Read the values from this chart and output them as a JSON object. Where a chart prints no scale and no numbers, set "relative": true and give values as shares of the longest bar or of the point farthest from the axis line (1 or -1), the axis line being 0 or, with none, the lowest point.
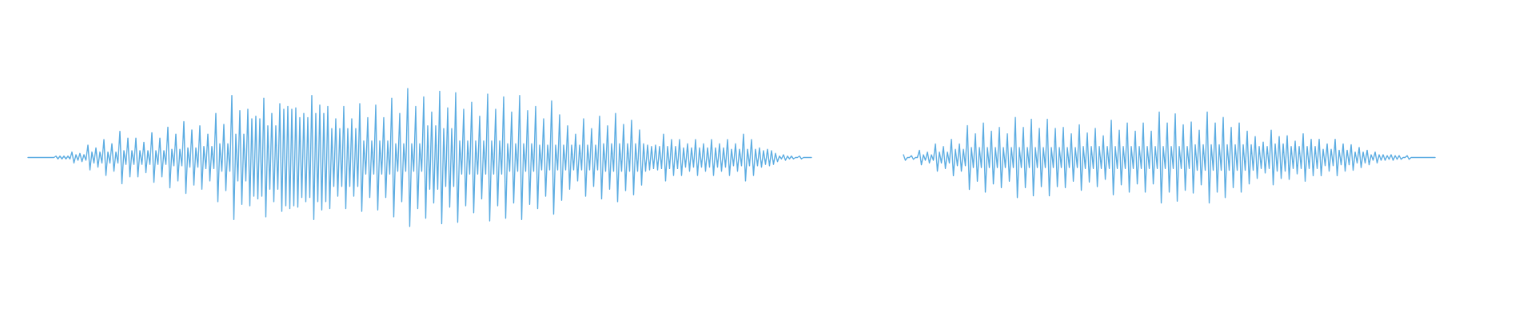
{
  "chart_data": [
    {
      "type": "line",
      "relative": true,
      "color": "#5dade2",
      "categories": [
        null,
        null,
        null,
        null,
        null,
        null,
        null,
        null,
        null,
        null,
        null,
        null,
        null,
        null,
        null,
        null,
        null,
        null,
        null,
        null,
        null,
        null,
        null,
        null,
        null,
        null,
        null,
        null,
        null,
        null,
        null,
        null,
        null,
        null,
        null,
        null,
        null,
        null,
        null,
        null,
        null,
        null,
        null,
        null,
        null,
        null,
        null,
        null,
        null,
        null,
        null,
        null,
        null,
        null,
        null,
        null,
        null,
        null,
        null,
        null,
        null,
        null,
        null,
        null,
        null,
        null,
        null,
        null,
        null,
        null,
        null,
        null,
        null,
        null,
        null,
        null,
        null,
        null,
        null,
        null,
        null,
        null,
        null,
        null,
        null,
        null,
        null,
        null,
        null,
        null,
        null,
        null,
        null,
        null,
        null,
        null,
        null,
        null,
        null,
        null,
        null,
        null,
        null,
        null,
        null,
        null,
        null,
        null,
        null,
        null,
        null,
        null,
        null,
        null,
        null,
        null,
        null,
        null,
        null,
        null,
        null,
        null,
        null,
        null,
        null,
        null,
        null,
        null,
        null,
        null,
        null,
        null,
        null,
        null,
        null,
        null,
        null,
        null,
        null,
        null,
        null,
        null,
        null,
        null,
        null,
        null,
        null,
        null,
        null,
        null,
        null,
        null,
        null,
        null,
        null,
        null,
        null,
        null,
        null,
        null,
        null,
        null,
        null,
        null,
        null,
        null,
        null,
        null,
        null,
        null,
        null,
        null,
        null,
        null,
        null,
        null,
        null,
        null,
        null,
        null,
        null,
        null,
        null,
        null,
        null,
        null,
        null,
        null,
        null,
        null,
        null,
        null,
        null,
        null,
        null,
        null,
        null,
        null,
        null,
        null,
        null,
        null,
        null,
        null,
        null,
        null,
        null,
        null,
        null,
        null,
        null,
        null,
        null,
        null,
        null,
        null,
        null,
        null,
        null,
        null,
        null,
        null,
        null,
        null,
        null,
        null,
        null,
        null,
        null,
        null,
        null,
        null,
        null,
        null,
        null,
        null,
        null,
        null,
        null,
        null,
        null,
        null,
        null,
        null,
        null,
        null,
        null,
        null,
        null,
        null,
        null,
        null,
        null,
        null,
        null,
        null,
        null,
        null,
        null,
        null,
        null,
        null,
        null,
        null,
        null,
        null,
        null,
        null,
        null,
        null,
        null,
        null,
        null,
        null,
        null,
        null,
        null,
        null,
        null,
        null,
        null,
        null,
        null,
        null,
        null,
        null,
        null,
        null,
        null,
        null,
        null,
        null,
        null,
        null,
        null,
        null,
        null,
        null,
        null,
        null,
        null,
        null,
        null,
        null,
        null,
        null,
        null,
        null,
        null,
        null,
        null,
        null,
        null,
        null,
        null,
        null,
        null,
        null,
        null,
        null,
        null,
        null,
        null,
        null,
        null,
        null,
        null,
        null,
        null,
        null,
        null,
        null,
        null,
        null,
        null,
        null,
        null,
        null,
        null,
        null,
        null,
        null,
        null,
        null,
        null,
        null,
        null,
        null,
        null,
        null,
        null,
        null,
        null,
        null,
        null,
        null,
        null,
        null,
        null,
        null,
        null,
        null,
        null,
        null,
        null,
        null,
        null,
        null,
        null,
        null,
        null,
        null,
        null,
        null,
        null,
        null,
        null,
        null,
        null,
        null,
        null,
        null,
        null,
        null,
        null,
        null,
        null,
        null,
        null,
        null,
        null,
        null,
        null
      ],
      "values": [
        0.5,
        0.5,
        0.5,
        0.5,
        0.5,
        0.5,
        0.5,
        0.5,
        0.5,
        0.5,
        0.5,
        0.5,
        0.5,
        0.5,
        0.51,
        0.49,
        0.51,
        0.49,
        0.51,
        0.49,
        0.51,
        0.49,
        0.54,
        0.46,
        0.52,
        0.48,
        0.53,
        0.47,
        0.52,
        0.48,
        0.59,
        0.41,
        0.54,
        0.46,
        0.57,
        0.43,
        0.54,
        0.46,
        0.63,
        0.37,
        0.54,
        0.46,
        0.6,
        0.4,
        0.54,
        0.46,
        0.69,
        0.31,
        0.55,
        0.45,
        0.64,
        0.36,
        0.55,
        0.45,
        0.64,
        0.36,
        0.55,
        0.45,
        0.61,
        0.39,
        0.55,
        0.45,
        0.68,
        0.32,
        0.55,
        0.45,
        0.64,
        0.36,
        0.55,
        0.45,
        0.72,
        0.28,
        0.56,
        0.44,
        0.67,
        0.33,
        0.56,
        0.44,
        0.76,
        0.24,
        0.57,
        0.43,
        0.7,
        0.3,
        0.57,
        0.43,
        0.73,
        0.27,
        0.58,
        0.42,
        0.67,
        0.33,
        0.58,
        0.42,
        0.82,
        0.18,
        0.6,
        0.4,
        0.74,
        0.26,
        0.6,
        0.4,
        0.95,
        0.05,
        0.67,
        0.33,
        0.84,
        0.16,
        0.67,
        0.33,
        0.85,
        0.15,
        0.78,
        0.22,
        0.8,
        0.2,
        0.78,
        0.22,
        0.93,
        0.07,
        0.73,
        0.27,
        0.82,
        0.18,
        0.73,
        0.27,
        0.89,
        0.11,
        0.85,
        0.15,
        0.87,
        0.13,
        0.85,
        0.15,
        0.86,
        0.14,
        0.79,
        0.21,
        0.82,
        0.18,
        0.79,
        0.21,
        0.95,
        0.05,
        0.82,
        0.18,
        0.88,
        0.12,
        0.82,
        0.18,
        0.87,
        0.13,
        0.71,
        0.29,
        0.78,
        0.22,
        0.71,
        0.29,
        0.87,
        0.13,
        0.71,
        0.29,
        0.78,
        0.22,
        0.71,
        0.29,
        0.89,
        0.11,
        0.62,
        0.38,
        0.79,
        0.21,
        0.62,
        0.38,
        0.88,
        0.12,
        0.62,
        0.38,
        0.79,
        0.21,
        0.62,
        0.38,
        0.93,
        0.07,
        0.6,
        0.4,
        0.82,
        0.18,
        0.6,
        0.4,
        1,
        0,
        0.6,
        0.4,
        0.87,
        0.13,
        0.6,
        0.4,
        0.94,
        0.06,
        0.73,
        0.27,
        0.83,
        0.17,
        0.73,
        0.27,
        0.98,
        0.02,
        0.71,
        0.29,
        0.86,
        0.14,
        0.71,
        0.29,
        0.97,
        0.03,
        0.62,
        0.38,
        0.85,
        0.15,
        0.62,
        0.38,
        0.9,
        0.1,
        0.62,
        0.38,
        0.8,
        0.2,
        0.62,
        0.38,
        0.96,
        0.04,
        0.62,
        0.38,
        0.85,
        0.15,
        0.62,
        0.38,
        0.94,
        0.06,
        0.6,
        0.4,
        0.83,
        0.17,
        0.6,
        0.4,
        0.95,
        0.05,
        0.6,
        0.4,
        0.84,
        0.16,
        0.6,
        0.4,
        0.87,
        0.13,
        0.59,
        0.41,
        0.78,
        0.22,
        0.59,
        0.41,
        0.91,
        0.09,
        0.59,
        0.41,
        0.81,
        0.19,
        0.59,
        0.41,
        0.73,
        0.27,
        0.59,
        0.41,
        0.67,
        0.33,
        0.59,
        0.41,
        0.78,
        0.22,
        0.59,
        0.41,
        0.71,
        0.29,
        0.59,
        0.41,
        0.8,
        0.2,
        0.6,
        0.4,
        0.73,
        0.27,
        0.6,
        0.4,
        0.82,
        0.18,
        0.6,
        0.4,
        0.74,
        0.26,
        0.6,
        0.4,
        0.77,
        0.23,
        0.6,
        0.4,
        0.7,
        0.3,
        0.6,
        0.4,
        0.59,
        0.41,
        0.58,
        0.42,
        0.59,
        0.41,
        0.58,
        0.42,
        0.67,
        0.33,
        0.58,
        0.42,
        0.63,
        0.37,
        0.58,
        0.42,
        0.63,
        0.37,
        0.57,
        0.43,
        0.6,
        0.4,
        0.57,
        0.43,
        0.63,
        0.37,
        0.57,
        0.43,
        0.6,
        0.4,
        0.57,
        0.43,
        0.63,
        0.37,
        0.57,
        0.43,
        0.6,
        0.4,
        0.57,
        0.43,
        0.63,
        0.37,
        0.56,
        0.44,
        0.6,
        0.4,
        0.56,
        0.44,
        0.67,
        0.33,
        0.56,
        0.44,
        0.63,
        0.37,
        0.56,
        0.44,
        0.57,
        0.43,
        0.55,
        0.45,
        0.56,
        0.44,
        0.55,
        0.45,
        0.53,
        0.47,
        0.51,
        0.49,
        0.52,
        0.48,
        0.51,
        0.49,
        0.51,
        0.49,
        0.5,
        0.5,
        0.51,
        0.49,
        0.5,
        0.5,
        0.5,
        0.5,
        0.5
      ]
    },
    {
      "type": "line",
      "relative": true,
      "color": "#5dade2",
      "categories": [
        null,
        null,
        null,
        null,
        null,
        null,
        null,
        null,
        null,
        null,
        null,
        null,
        null,
        null,
        null,
        null,
        null,
        null,
        null,
        null,
        null,
        null,
        null,
        null,
        null,
        null,
        null,
        null,
        null,
        null,
        null,
        null,
        null,
        null,
        null,
        null,
        null,
        null,
        null,
        null,
        null,
        null,
        null,
        null,
        null,
        null,
        null,
        null,
        null,
        null,
        null,
        null,
        null,
        null,
        null,
        null,
        null,
        null,
        null,
        null,
        null,
        null,
        null,
        null,
        null,
        null,
        null,
        null,
        null,
        null,
        null,
        null,
        null,
        null,
        null,
        null,
        null,
        null,
        null,
        null,
        null,
        null,
        null,
        null,
        null,
        null,
        null,
        null,
        null,
        null,
        null,
        null,
        null,
        null,
        null,
        null,
        null,
        null,
        null,
        null,
        null,
        null,
        null,
        null,
        null,
        null,
        null,
        null,
        null,
        null,
        null,
        null,
        null,
        null,
        null,
        null,
        null,
        null,
        null,
        null,
        null,
        null,
        null,
        null,
        null,
        null,
        null,
        null,
        null,
        null,
        null,
        null,
        null,
        null,
        null,
        null,
        null,
        null,
        null,
        null,
        null,
        null,
        null,
        null,
        null,
        null,
        null,
        null,
        null,
        null,
        null,
        null,
        null,
        null,
        null,
        null,
        null,
        null,
        null,
        null,
        null,
        null,
        null,
        null,
        null,
        null,
        null,
        null,
        null,
        null,
        null,
        null,
        null,
        null,
        null,
        null,
        null,
        null,
        null,
        null,
        null,
        null,
        null,
        null,
        null,
        null,
        null,
        null,
        null,
        null,
        null,
        null,
        null,
        null,
        null,
        null,
        null,
        null,
        null,
        null,
        null,
        null,
        null,
        null,
        null,
        null,
        null,
        null,
        null,
        null,
        null,
        null,
        null,
        null,
        null,
        null,
        null,
        null,
        null,
        null,
        null,
        null,
        null,
        null,
        null,
        null,
        null,
        null,
        null,
        null,
        null,
        null,
        null,
        null,
        null,
        null,
        null,
        null,
        null,
        null,
        null,
        null,
        null,
        null,
        null,
        null,
        null,
        null,
        null,
        null,
        null,
        null,
        null,
        null,
        null,
        null,
        null,
        null,
        null,
        null,
        null,
        null,
        null,
        null,
        null,
        null,
        null
      ],
      "values": [
        0.53,
        0.47,
        0.5,
        0.5,
        0.52,
        0.48,
        0.5,
        0.5,
        0.58,
        0.42,
        0.53,
        0.47,
        0.56,
        0.44,
        0.53,
        0.47,
        0.65,
        0.35,
        0.56,
        0.44,
        0.62,
        0.38,
        0.56,
        0.44,
        0.7,
        0.3,
        0.59,
        0.41,
        0.65,
        0.35,
        0.59,
        0.41,
        0.85,
        0.15,
        0.61,
        0.39,
        0.76,
        0.24,
        0.61,
        0.39,
        0.88,
        0.12,
        0.61,
        0.39,
        0.79,
        0.21,
        0.61,
        0.39,
        0.83,
        0.17,
        0.61,
        0.39,
        0.76,
        0.24,
        0.61,
        0.39,
        0.94,
        0.06,
        0.61,
        0.39,
        0.83,
        0.17,
        0.61,
        0.39,
        0.92,
        0.08,
        0.61,
        0.39,
        0.82,
        0.18,
        0.61,
        0.39,
        0.92,
        0.08,
        0.61,
        0.39,
        0.82,
        0.18,
        0.61,
        0.39,
        0.83,
        0.17,
        0.61,
        0.39,
        0.76,
        0.24,
        0.61,
        0.39,
        0.86,
        0.14,
        0.62,
        0.38,
        0.77,
        0.23,
        0.62,
        0.38,
        0.82,
        0.18,
        0.62,
        0.38,
        0.74,
        0.26,
        0.62,
        0.38,
        0.91,
        0.09,
        0.62,
        0.38,
        0.8,
        0.2,
        0.62,
        0.38,
        0.88,
        0.12,
        0.62,
        0.38,
        0.79,
        0.21,
        0.62,
        0.38,
        0.88,
        0.12,
        0.62,
        0.38,
        0.79,
        0.21,
        0.62,
        0.38,
        1,
        0,
        0.62,
        0.38,
        0.88,
        0.12,
        0.62,
        0.38,
        0.98,
        0.02,
        0.62,
        0.38,
        0.86,
        0.14,
        0.62,
        0.38,
        0.89,
        0.11,
        0.64,
        0.36,
        0.8,
        0.2,
        0.64,
        0.36,
        1,
        0,
        0.64,
        0.36,
        0.88,
        0.12,
        0.64,
        0.36,
        0.94,
        0.06,
        0.64,
        0.36,
        0.83,
        0.17,
        0.64,
        0.36,
        0.88,
        0.12,
        0.64,
        0.36,
        0.79,
        0.21,
        0.64,
        0.36,
        0.73,
        0.27,
        0.62,
        0.38,
        0.67,
        0.33,
        0.62,
        0.38,
        0.8,
        0.2,
        0.65,
        0.35,
        0.73,
        0.27,
        0.65,
        0.35,
        0.74,
        0.26,
        0.62,
        0.38,
        0.68,
        0.32,
        0.62,
        0.38,
        0.76,
        0.24,
        0.62,
        0.38,
        0.7,
        0.3,
        0.62,
        0.38,
        0.7,
        0.3,
        0.59,
        0.41,
        0.65,
        0.35,
        0.59,
        0.41,
        0.7,
        0.3,
        0.58,
        0.42,
        0.65,
        0.35,
        0.58,
        0.42,
        0.64,
        0.36,
        0.56,
        0.44,
        0.61,
        0.39,
        0.56,
        0.44,
        0.58,
        0.42,
        0.53,
        0.47,
        0.56,
        0.44,
        0.53,
        0.47,
        0.53,
        0.47,
        0.52,
        0.48,
        0.53,
        0.47,
        0.52,
        0.48,
        0.52,
        0.48,
        0.5,
        0.5,
        0.52,
        0.48,
        0.5,
        0.5,
        0.5,
        0.5,
        0.5,
        0.5,
        0.5,
        0.5,
        0.5,
        0.5,
        0.5,
        0.5,
        0.5
      ]
    }
  ]
}
